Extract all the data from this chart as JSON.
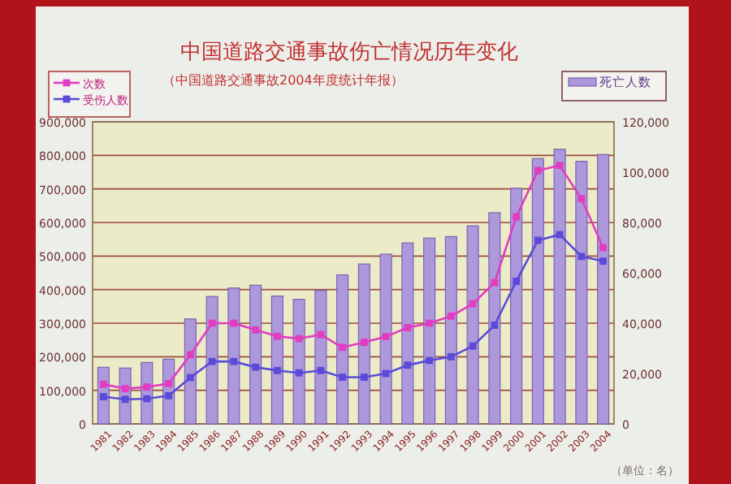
{
  "chart_data": {
    "type": "bar",
    "title": "中国道路交通事故伤亡情况历年变化",
    "subtitle": "（中国道路交通事故2004年度统计年报）",
    "categories": [
      "1981",
      "1982",
      "1983",
      "1984",
      "1985",
      "1986",
      "1987",
      "1988",
      "1989",
      "1990",
      "1991",
      "1992",
      "1993",
      "1994",
      "1995",
      "1996",
      "1997",
      "1998",
      "1999",
      "2000",
      "2001",
      "2002",
      "2003",
      "2004"
    ],
    "series": [
      {
        "name": "死亡人数",
        "axis": "y2",
        "color": "#ad98dc",
        "values": [
          22500,
          22200,
          24400,
          25700,
          41700,
          50600,
          54000,
          55100,
          50800,
          49500,
          53000,
          59200,
          63500,
          67400,
          71900,
          73800,
          74400,
          78700,
          83900,
          93600,
          105400,
          109100,
          104300,
          107000
        ]
      },
      {
        "name": "次数",
        "type": "line",
        "color": "#e23cc0",
        "values": [
          118000,
          105000,
          110000,
          120000,
          206000,
          300000,
          300000,
          280000,
          261000,
          254000,
          266000,
          228000,
          243000,
          260000,
          287000,
          300000,
          321000,
          358000,
          421000,
          617000,
          755000,
          770000,
          671000,
          525000
        ]
      },
      {
        "name": "受伤人数",
        "type": "line",
        "color": "#5a4ad8",
        "values": [
          81000,
          73000,
          75000,
          84000,
          138000,
          186000,
          186000,
          169000,
          159000,
          152000,
          159000,
          139000,
          139000,
          150000,
          175000,
          189000,
          200000,
          232000,
          294000,
          425000,
          547000,
          564000,
          499000,
          485000
        ]
      }
    ],
    "ylim": [
      0,
      900000
    ],
    "yticks": [
      {
        "value": 0,
        "label": "0"
      },
      {
        "value": 100000,
        "label": "100,000"
      },
      {
        "value": 200000,
        "label": "200,000"
      },
      {
        "value": 300000,
        "label": "300,000"
      },
      {
        "value": 400000,
        "label": "400,000"
      },
      {
        "value": 500000,
        "label": "500,000"
      },
      {
        "value": 600000,
        "label": "600,000"
      },
      {
        "value": 700000,
        "label": "700,000"
      },
      {
        "value": 800000,
        "label": "800,000"
      },
      {
        "value": 900000,
        "label": "900,000"
      }
    ],
    "y2lim": [
      0,
      120000
    ],
    "y2ticks": [
      {
        "value": 0,
        "label": "0"
      },
      {
        "value": 20000,
        "label": "20,000"
      },
      {
        "value": 40000,
        "label": "40,000"
      },
      {
        "value": 60000,
        "label": "60,000"
      },
      {
        "value": 80000,
        "label": "80,000"
      },
      {
        "value": 100000,
        "label": "100,000"
      },
      {
        "value": 120000,
        "label": "120,000"
      }
    ],
    "grid": "y",
    "legend": "top",
    "marker": "square",
    "annotations": [
      "（单位：名）"
    ]
  }
}
